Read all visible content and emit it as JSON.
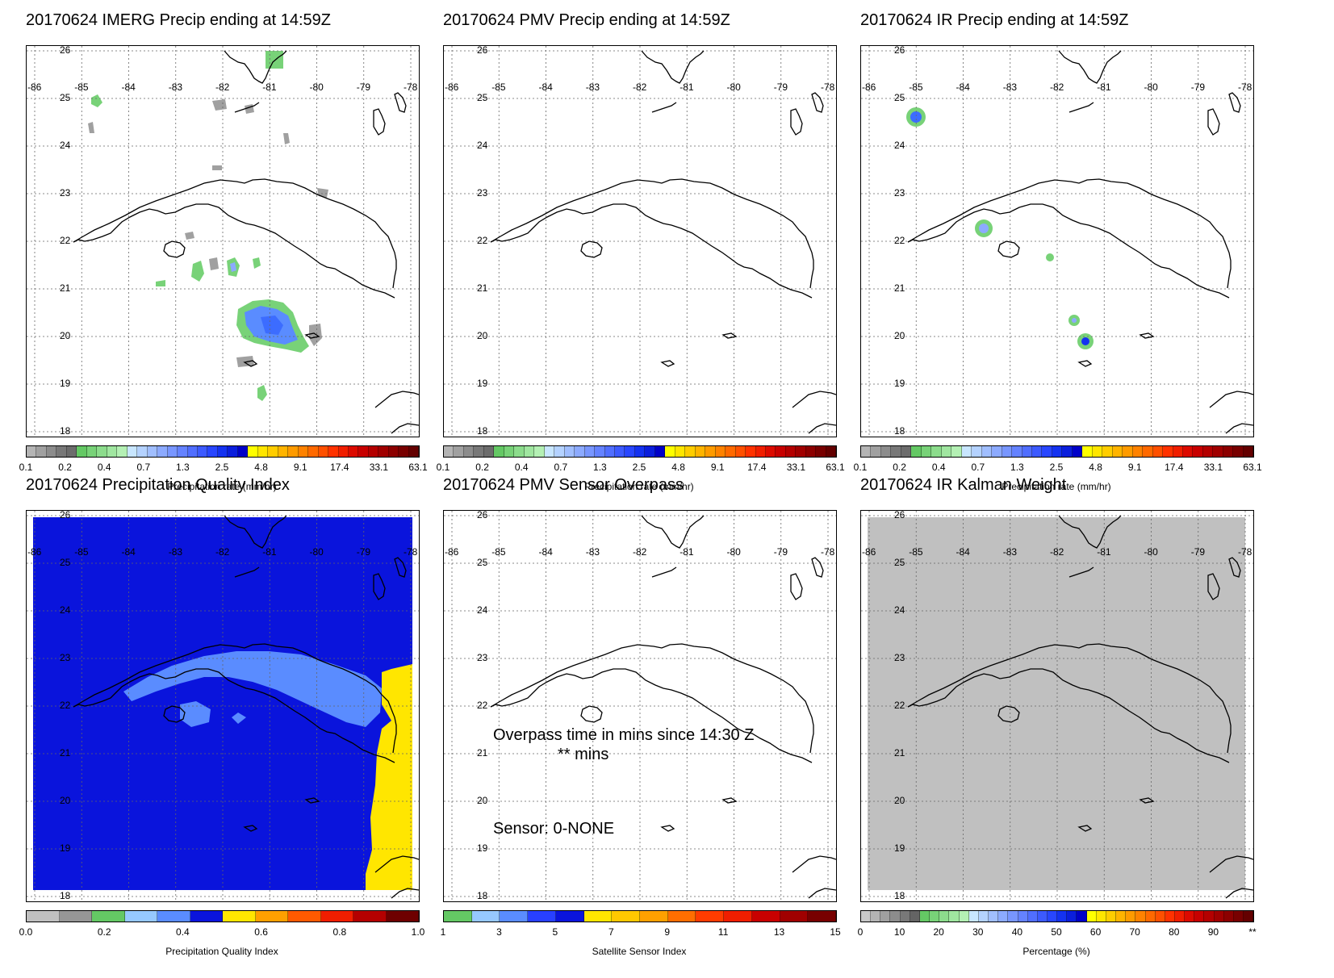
{
  "panels": [
    {
      "id": "imerg",
      "title": "20170624 IMERG Precip ending at 14:59Z",
      "colorbar": {
        "title": "Precipitation rate (mm/hr)",
        "ticks": [
          "0.1",
          "0.2",
          "0.4",
          "0.7",
          "1.3",
          "2.5",
          "4.8",
          "9.1",
          "17.4",
          "33.1",
          "63.1"
        ],
        "colors": [
          "#b4b4b4",
          "#a0a0a0",
          "#8c8c8c",
          "#787878",
          "#6c6c6c",
          "#64c864",
          "#78d278",
          "#8cdc8c",
          "#a0e6a0",
          "#b4f0b4",
          "#c8e6ff",
          "#b4d2ff",
          "#a0beff",
          "#8caaff",
          "#7896ff",
          "#6482ff",
          "#506eff",
          "#3c5aff",
          "#2846ff",
          "#1432f0",
          "#0a1edc",
          "#0000c8",
          "#ffff00",
          "#ffe600",
          "#ffcd00",
          "#ffb400",
          "#ff9b00",
          "#ff8200",
          "#ff6900",
          "#ff5000",
          "#ff3200",
          "#f01e00",
          "#dc0a00",
          "#c80000",
          "#b40000",
          "#a00000",
          "#8c0000",
          "#780000",
          "#640000"
        ]
      }
    },
    {
      "id": "pmv",
      "title": "20170624 PMV Precip ending at 14:59Z",
      "colorbar": {
        "title": "Precipitation rate (mm/hr)",
        "ticks": [
          "0.1",
          "0.2",
          "0.4",
          "0.7",
          "1.3",
          "2.5",
          "4.8",
          "9.1",
          "17.4",
          "33.1",
          "63.1"
        ]
      }
    },
    {
      "id": "ir",
      "title": "20170624 IR Precip ending at 14:59Z",
      "colorbar": {
        "title": "Precipitation rate (mm/hr)",
        "ticks": [
          "0.1",
          "0.2",
          "0.4",
          "0.7",
          "1.3",
          "2.5",
          "4.8",
          "9.1",
          "17.4",
          "33.1",
          "63.1"
        ]
      }
    },
    {
      "id": "pqi",
      "title": "20170624 Precipitation Quality Index",
      "colorbar": {
        "title": "Precipitation Quality Index",
        "ticks": [
          "0.0",
          "0.2",
          "0.4",
          "0.6",
          "0.8",
          "1.0"
        ],
        "colors": [
          "#c0c0c0",
          "#969696",
          "#64c864",
          "#96c8ff",
          "#5a8cff",
          "#0a14dc",
          "#ffe600",
          "#ffa000",
          "#ff5a00",
          "#f01e00",
          "#b40000",
          "#6e0000"
        ]
      }
    },
    {
      "id": "sensor",
      "title": "20170624 PMV Sensor Overpass",
      "overlay": {
        "overpass_line": "Overpass time in mins since 14:30 Z",
        "mins_line": "** mins",
        "sensor_line": "Sensor:   0-NONE"
      },
      "colorbar": {
        "title": "Satellite Sensor Index",
        "ticks": [
          "1",
          "3",
          "5",
          "7",
          "9",
          "11",
          "13",
          "15"
        ],
        "colors": [
          "#64c864",
          "#96c8ff",
          "#5a8cff",
          "#2840ff",
          "#0a14dc",
          "#ffe600",
          "#ffc800",
          "#ffa000",
          "#ff6e00",
          "#ff3c00",
          "#f01e00",
          "#c80000",
          "#a00000",
          "#780000"
        ]
      }
    },
    {
      "id": "kalman",
      "title": "20170624 IR Kalman Weight",
      "colorbar": {
        "title": "Percentage (%)",
        "ticks": [
          "0",
          "10",
          "20",
          "30",
          "40",
          "50",
          "60",
          "70",
          "80",
          "90",
          "**"
        ]
      }
    }
  ],
  "axes": {
    "lon_labels": [
      "-86",
      "-85",
      "-84",
      "-83",
      "-82",
      "-81",
      "-80",
      "-79",
      "-78"
    ],
    "lat_labels": [
      "26",
      "25",
      "24",
      "23",
      "22",
      "21",
      "20",
      "19",
      "18"
    ]
  },
  "colors": {
    "precip_light_green": "#78d278",
    "precip_blue": "#5a8cff",
    "pqi_blue": "#0a14dc",
    "pqi_light_blue": "#5a8cff",
    "pqi_yellow": "#ffe600",
    "kalman_gray": "#c0c0c0"
  }
}
